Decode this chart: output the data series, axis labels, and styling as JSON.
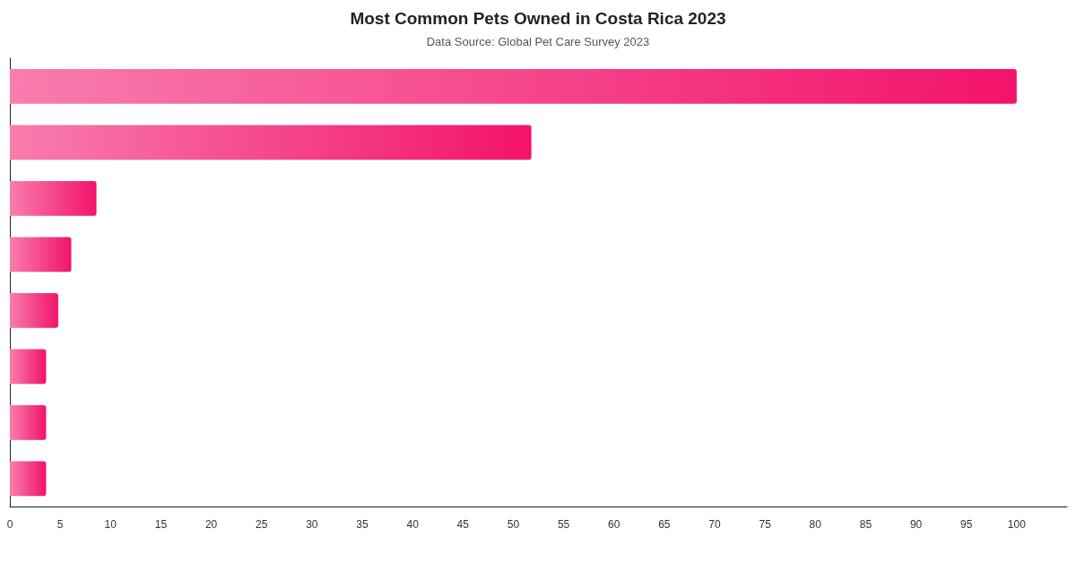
{
  "chart_data": {
    "type": "bar",
    "orientation": "horizontal",
    "title": "Most Common Pets Owned in Costa Rica 2023",
    "subtitle": "Data Source: Global Pet Care Survey 2023",
    "categories": [
      null,
      null,
      null,
      null,
      null,
      null,
      null,
      null
    ],
    "values": [
      100,
      51.8,
      8.6,
      6.1,
      4.8,
      3.6,
      3.6,
      3.6
    ],
    "color": "#f2136a",
    "xlim": [
      0,
      105
    ],
    "xticks": [
      0,
      5,
      10,
      15,
      20,
      25,
      30,
      35,
      40,
      45,
      50,
      55,
      60,
      65,
      70,
      75,
      80,
      85,
      90,
      95,
      100
    ],
    "grid": false
  }
}
